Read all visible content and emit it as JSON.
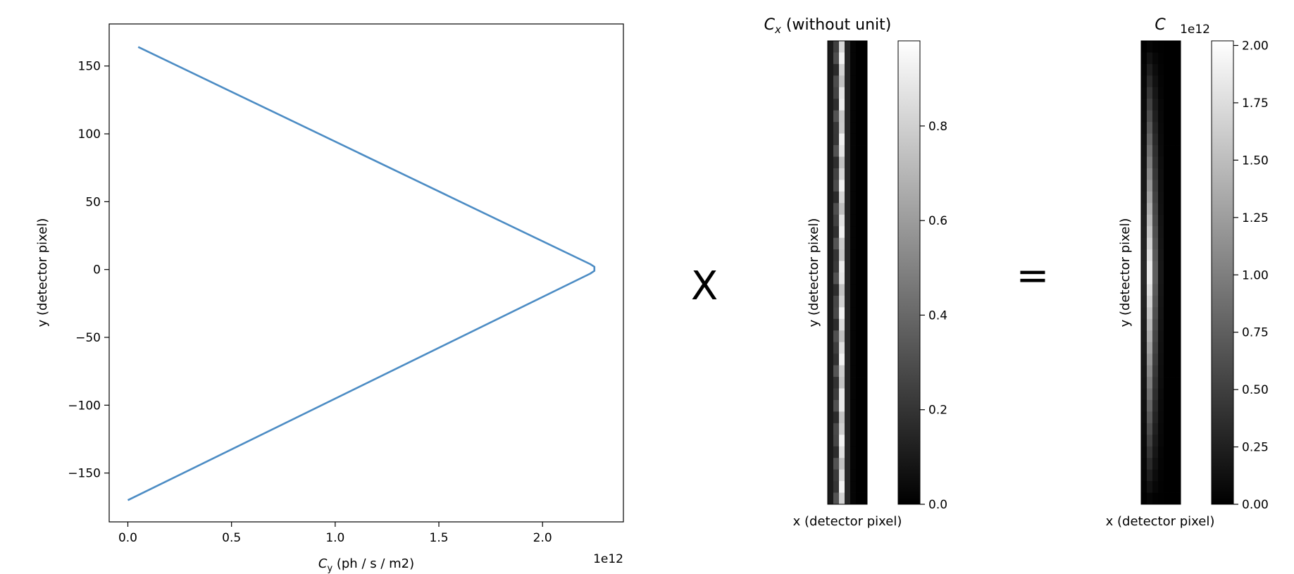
{
  "operators": {
    "times": "X",
    "equals": "="
  },
  "chart_data": [
    {
      "type": "line",
      "xlabel_symbol": "C",
      "xlabel_sub": "y",
      "xlabel_rest": " (ph / s / m2)",
      "ylabel": "y (detector pixel)",
      "x_offset_text": "1e12",
      "xlim": [
        -0.09,
        2.39
      ],
      "ylim": [
        -186,
        181
      ],
      "x_ticks": [
        0.0,
        0.5,
        1.0,
        1.5,
        2.0
      ],
      "x_tick_labels": [
        "0.0",
        "0.5",
        "1.0",
        "1.5",
        "2.0"
      ],
      "y_ticks": [
        150,
        100,
        50,
        0,
        -50,
        -100,
        -150
      ],
      "y_tick_labels": [
        "150",
        "100",
        "50",
        "0",
        "−50",
        "−100",
        "−150"
      ],
      "grid": false,
      "series": [
        {
          "color": "#4c8cc4",
          "x": [
            0.05,
            2.23,
            2.25,
            2.25,
            2.23,
            0.0
          ],
          "y": [
            164,
            4,
            2,
            -1,
            -3,
            -170
          ]
        }
      ]
    },
    {
      "type": "heatmap",
      "title_symbol": "C",
      "title_sub": "x",
      "title_rest": " (without unit)",
      "xlabel": "x (detector pixel)",
      "ylabel": "y (detector pixel)",
      "colormap": "gray",
      "column_values": [
        0.1,
        0.25,
        0.85,
        0.15,
        0.02,
        0.0,
        0.0
      ],
      "colorbar": {
        "range": [
          0,
          0.98
        ],
        "ticks": [
          0.0,
          0.2,
          0.4,
          0.6,
          0.8
        ],
        "tick_labels": [
          "0.0",
          "0.2",
          "0.4",
          "0.6",
          "0.8"
        ]
      }
    },
    {
      "type": "heatmap",
      "title": "C",
      "xlabel": "x (detector pixel)",
      "ylabel": "y (detector pixel)",
      "colormap": "gray",
      "peak_value": 2.0,
      "colorbar": {
        "offset_text": "1e12",
        "range": [
          0,
          2.02
        ],
        "ticks": [
          0.0,
          0.25,
          0.5,
          0.75,
          1.0,
          1.25,
          1.5,
          1.75,
          2.0
        ],
        "tick_labels": [
          "0.00",
          "0.25",
          "0.50",
          "0.75",
          "1.00",
          "1.25",
          "1.50",
          "1.75",
          "2.00"
        ]
      }
    }
  ]
}
